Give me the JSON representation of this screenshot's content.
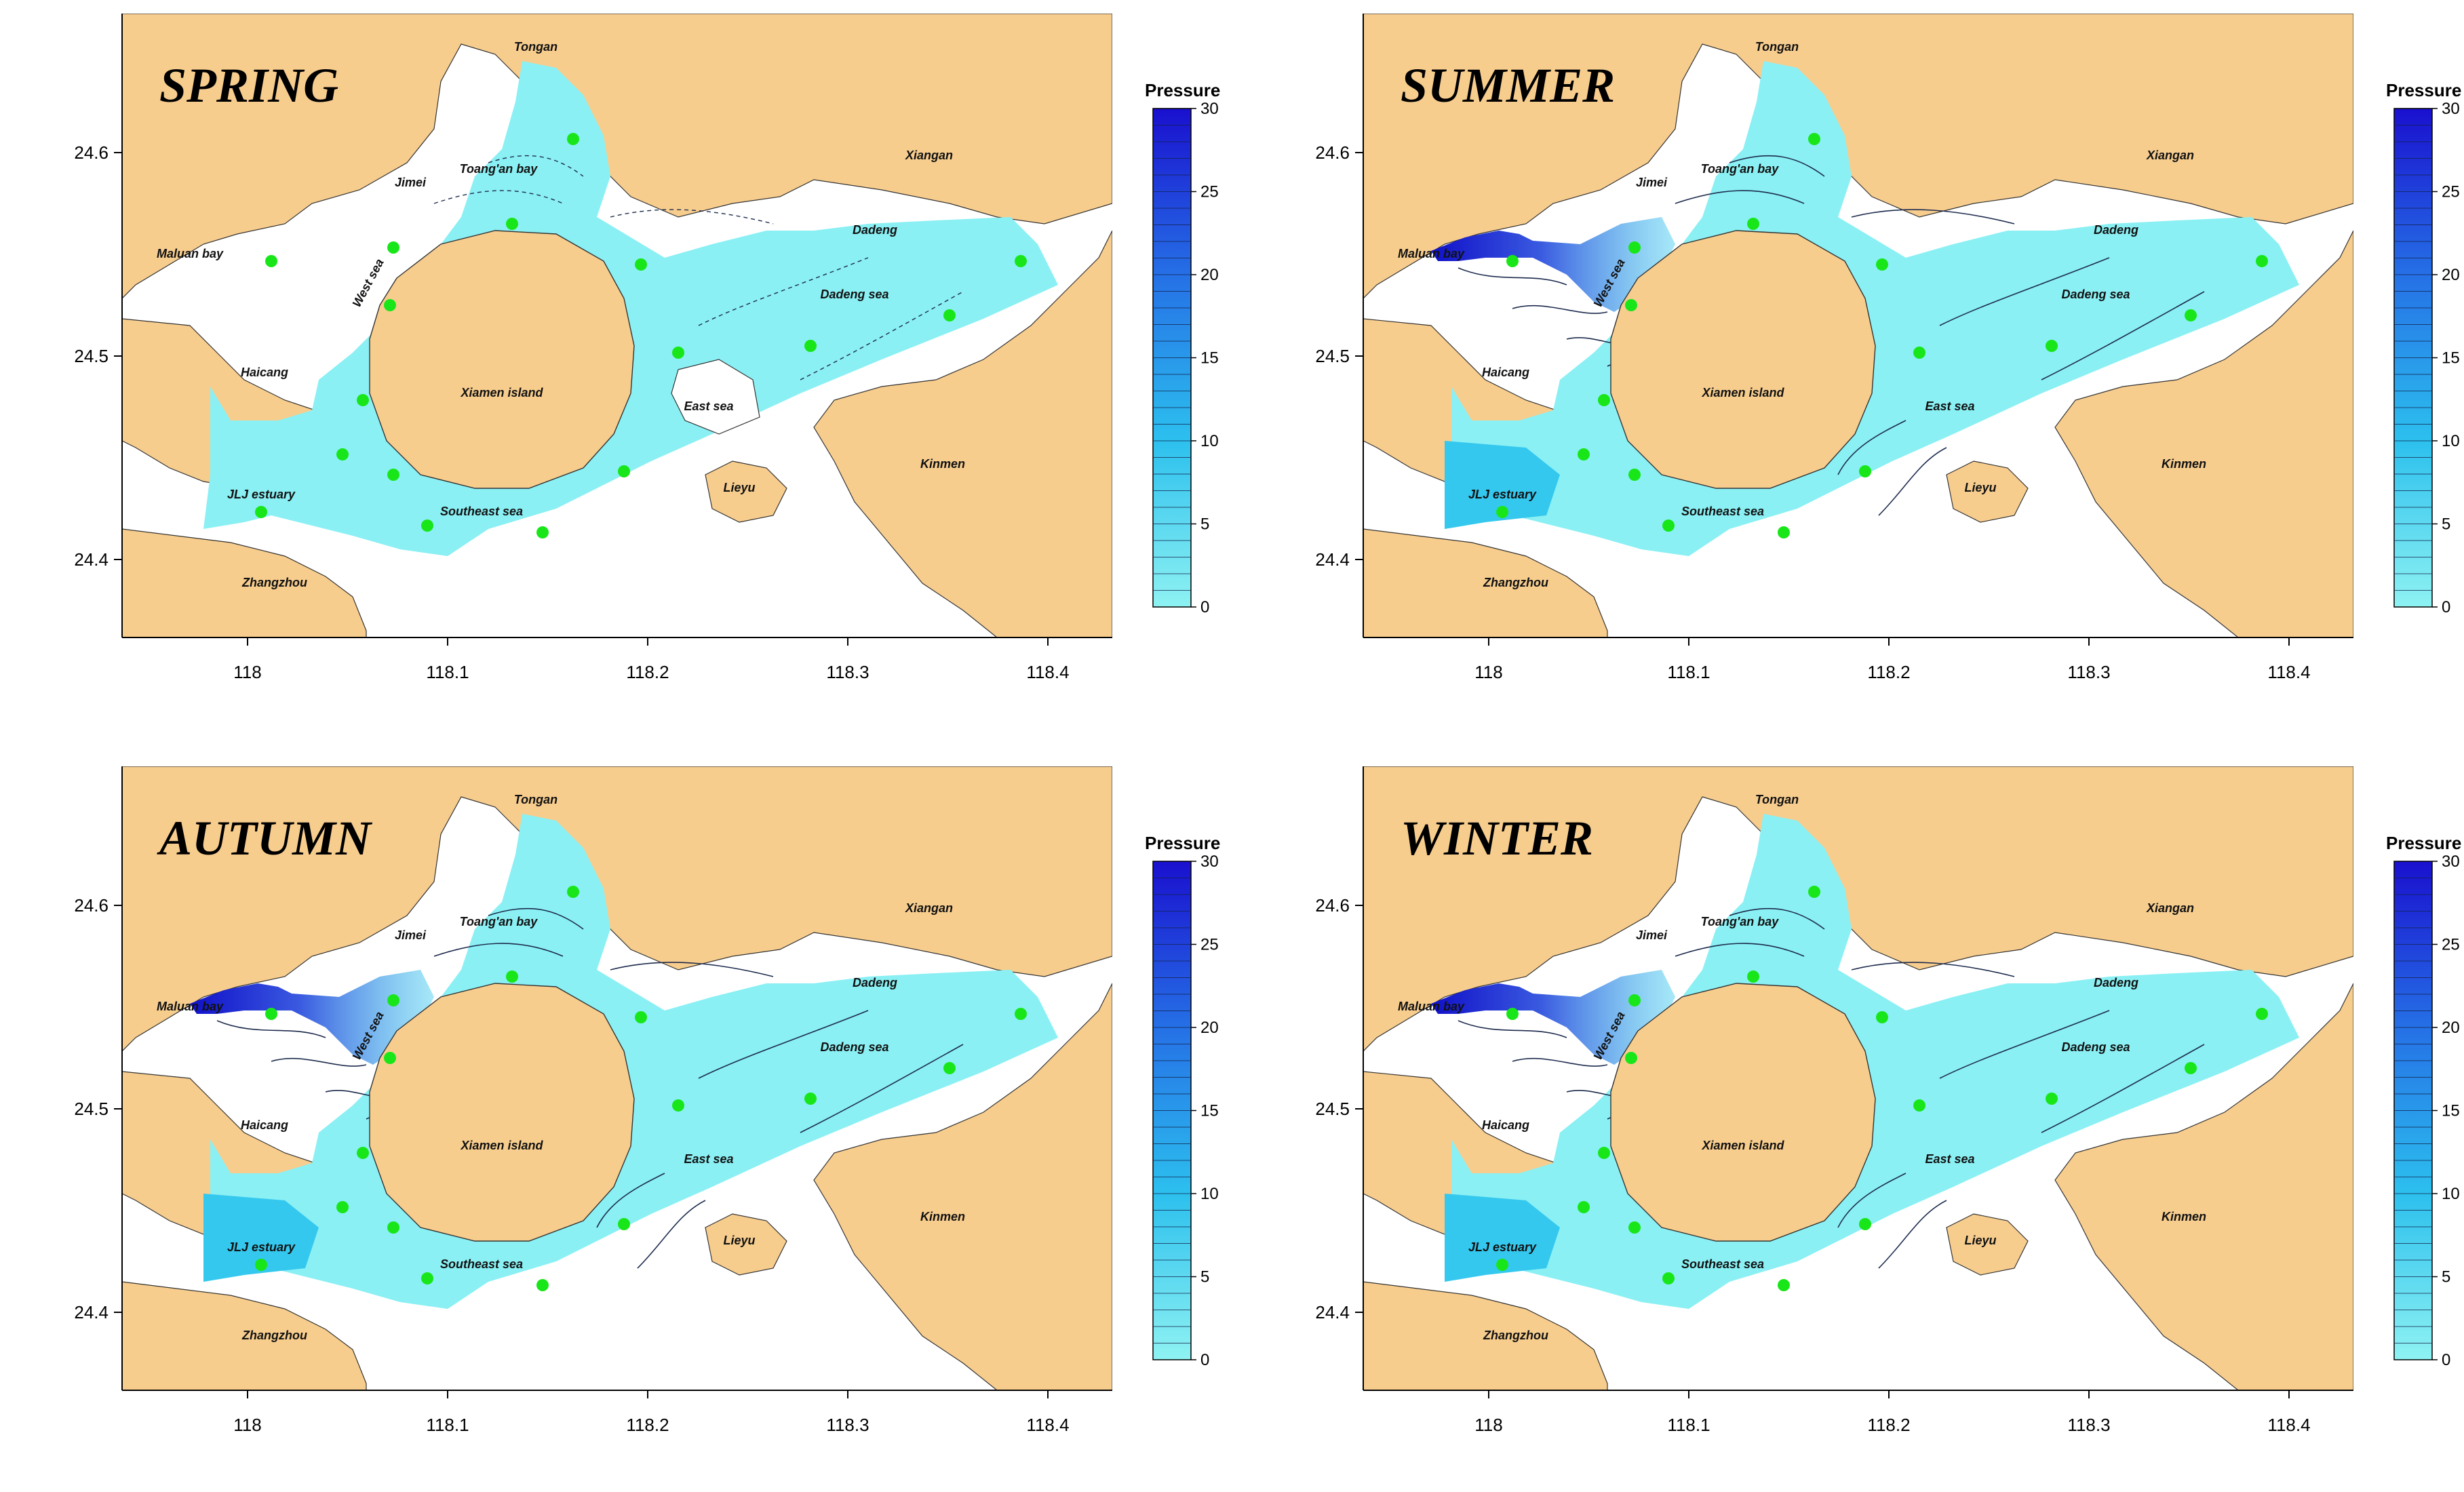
{
  "colorbar": {
    "title": "Pressure",
    "ticks": [
      "0",
      "5",
      "10",
      "15",
      "20",
      "25",
      "30"
    ],
    "colors": [
      "#8ef2f2",
      "#2cc0ee",
      "#2570e6",
      "#1a10cf"
    ]
  },
  "colors": {
    "land": "#f7cd8e",
    "water": "#ffffff",
    "station": "#19e619",
    "contour": "#1d2b4d"
  },
  "axes": {
    "x_ticks": [
      "118",
      "118.1",
      "118.2",
      "118.3",
      "118.4"
    ],
    "y_ticks": [
      "24.4",
      "24.5",
      "24.6"
    ]
  },
  "places": [
    {
      "key": "tongan",
      "label": "Tongan"
    },
    {
      "key": "jimei",
      "label": "Jimei"
    },
    {
      "key": "toangan",
      "label": "Toang'an bay"
    },
    {
      "key": "xiangan",
      "label": "Xiangan"
    },
    {
      "key": "maluan",
      "label": "Maluan bay"
    },
    {
      "key": "dadeng",
      "label": "Dadeng"
    },
    {
      "key": "westsea",
      "label": "West sea"
    },
    {
      "key": "dadengsea",
      "label": "Dadeng sea"
    },
    {
      "key": "haicang",
      "label": "Haicang"
    },
    {
      "key": "xiamen",
      "label": "Xiamen island"
    },
    {
      "key": "eastsea",
      "label": "East sea"
    },
    {
      "key": "kinmen",
      "label": "Kinmen"
    },
    {
      "key": "jlj",
      "label": "JLJ estuary"
    },
    {
      "key": "lieyu",
      "label": "Lieyu"
    },
    {
      "key": "southeast",
      "label": "Southeast sea"
    },
    {
      "key": "zhangzhou",
      "label": "Zhangzhou"
    }
  ],
  "panels": [
    {
      "season": "SPRING",
      "hotspot": false,
      "jlj": false,
      "east_hole": true
    },
    {
      "season": "SUMMER",
      "hotspot": true,
      "jlj": true,
      "east_hole": false
    },
    {
      "season": "AUTUMN",
      "hotspot": true,
      "jlj": true,
      "east_hole": false
    },
    {
      "season": "WINTER",
      "hotspot": true,
      "jlj": true,
      "east_hole": false
    }
  ]
}
